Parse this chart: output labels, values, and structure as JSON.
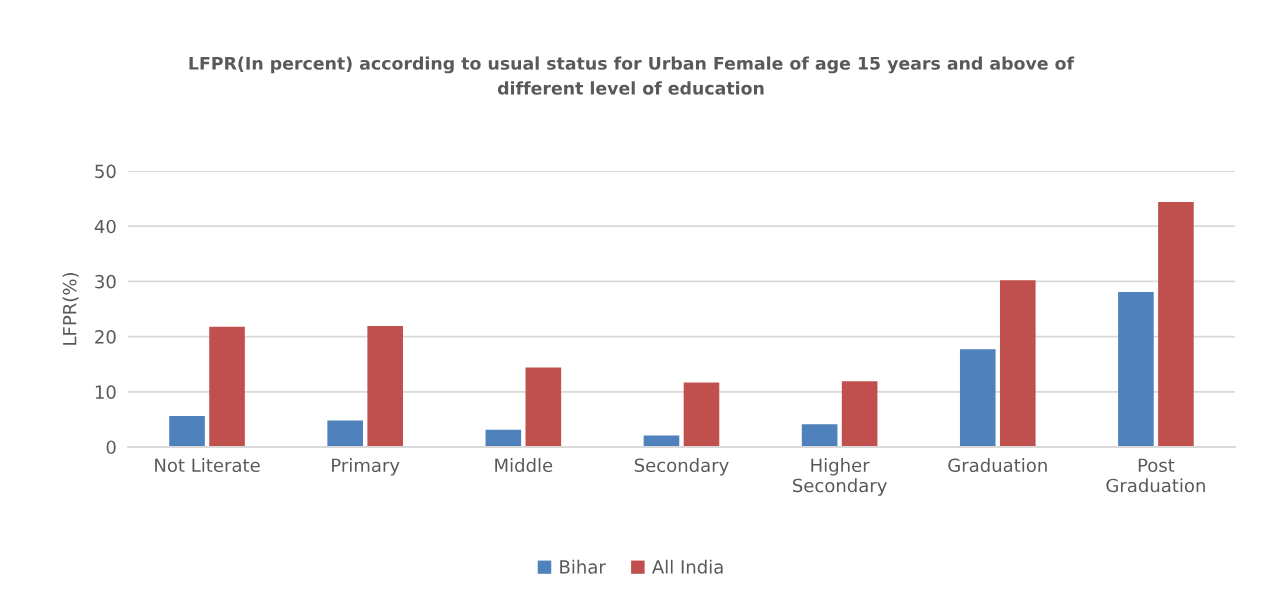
{
  "chart_data": {
    "type": "bar",
    "title": "LFPR(In percent) according to usual status for Urban Female of age 15 years and above of\ndifferent level of education",
    "ylabel": "LFPR(%)",
    "categories": [
      "Not Literate",
      "Primary",
      "Middle",
      "Secondary",
      "Higher\nSecondary",
      "Graduation",
      "Post\nGraduation"
    ],
    "series": [
      {
        "name": "Bihar",
        "color": "#4f81bd",
        "values": [
          5.6,
          4.8,
          3.1,
          2.1,
          4.1,
          17.7,
          28.1
        ]
      },
      {
        "name": "All India",
        "color": "#c0504d",
        "values": [
          21.8,
          21.9,
          14.4,
          11.7,
          11.9,
          30.2,
          44.4
        ]
      }
    ],
    "ylim": [
      0,
      50
    ],
    "yticks": [
      0,
      10,
      20,
      30,
      40,
      50
    ],
    "grid": "y",
    "legend": "bottom"
  }
}
